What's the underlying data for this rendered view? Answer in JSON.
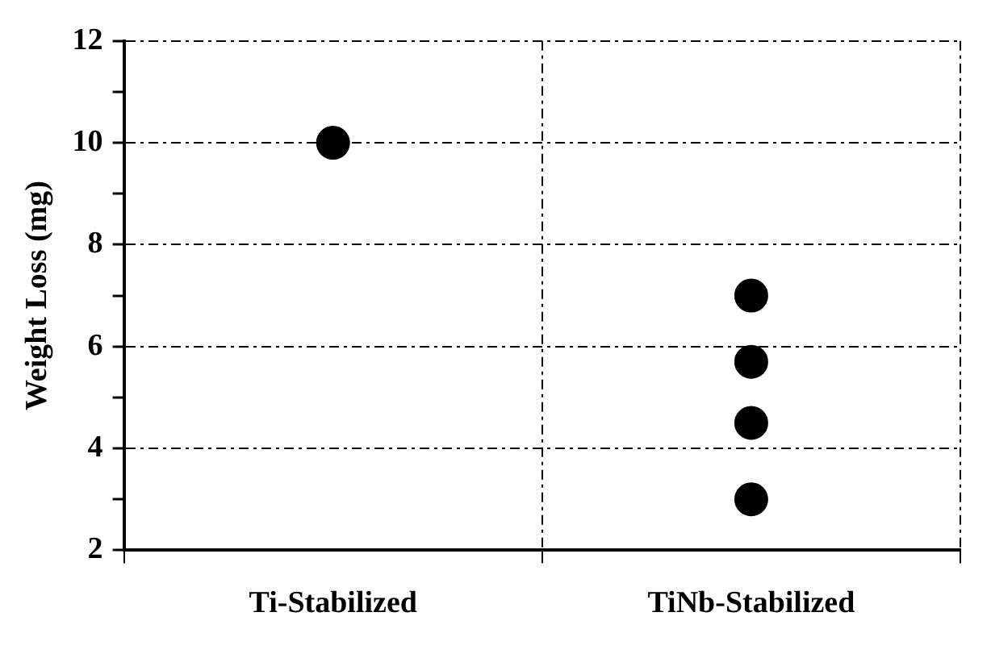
{
  "chart_data": {
    "type": "scatter",
    "ylabel": "Weight Loss (mg)",
    "categories": [
      "Ti-Stabilized",
      "TiNb-Stabilized"
    ],
    "series": [
      {
        "color": "#000000",
        "x": [
          "Ti-Stabilized",
          "TiNb-Stabilized",
          "TiNb-Stabilized",
          "TiNb-Stabilized",
          "TiNb-Stabilized"
        ],
        "values": [
          10,
          7,
          5.7,
          4.5,
          3
        ]
      }
    ],
    "ylim": [
      2,
      12
    ],
    "yticks": [
      2,
      {
        "value": 3,
        "label": null
      },
      4,
      {
        "value": 5,
        "label": null
      },
      6,
      {
        "value": 7,
        "label": null
      },
      8,
      {
        "value": 9,
        "label": null
      },
      10,
      {
        "value": 11,
        "label": null
      },
      12
    ],
    "grid": true,
    "marker": "circle",
    "legend": false
  }
}
